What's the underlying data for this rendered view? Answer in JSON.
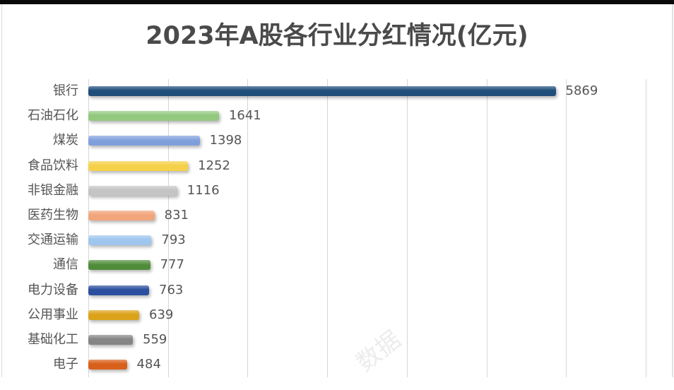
{
  "title": "2023年A股各行业分红情况(亿元)",
  "watermark": "数据",
  "chart_data": {
    "type": "bar",
    "orientation": "horizontal",
    "title": "2023年A股各行业分红情况(亿元)",
    "xlabel": "",
    "ylabel": "",
    "unit": "亿元",
    "xlim": [
      0,
      7000
    ],
    "grid": true,
    "grid_ticks": [
      0,
      1000,
      2000,
      3000,
      4000,
      5000,
      6000,
      7000
    ],
    "legend": "none",
    "data_labels": true,
    "categories": [
      "银行",
      "石油石化",
      "煤炭",
      "食品饮料",
      "非银金融",
      "医药生物",
      "交通运输",
      "通信",
      "电力设备",
      "公用事业",
      "基础化工",
      "电子"
    ],
    "values": [
      5869,
      1641,
      1398,
      1252,
      1116,
      831,
      793,
      777,
      763,
      639,
      559,
      484
    ],
    "colors": [
      "#1f4e7a",
      "#93c97f",
      "#7f9fdc",
      "#f5d14a",
      "#c4c4c4",
      "#f2a57a",
      "#9ec6ee",
      "#4f8c3a",
      "#2a4f9e",
      "#dca21a",
      "#858585",
      "#d9601a"
    ],
    "value_labels": [
      "5869",
      "1641",
      "1398",
      "1252",
      "1116",
      "831",
      "793",
      "777",
      "763",
      "639",
      "559",
      "484"
    ]
  }
}
